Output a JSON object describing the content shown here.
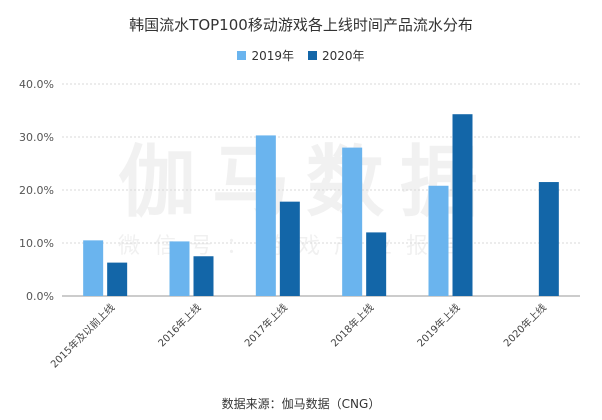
{
  "chart_data": {
    "type": "bar",
    "title": "韩国流水TOP100移动游戏各上线时间产品流水分布",
    "categories": [
      "2015年及以前上线",
      "2016年上线",
      "2017年上线",
      "2018年上线",
      "2019年上线",
      "2020年上线"
    ],
    "series": [
      {
        "name": "2019年",
        "color": "#6ab4ee",
        "values": [
          10.5,
          10.3,
          30.3,
          28.0,
          20.8,
          null
        ]
      },
      {
        "name": "2020年",
        "color": "#1366a8",
        "values": [
          6.3,
          7.5,
          17.8,
          12.0,
          34.3,
          21.5
        ]
      }
    ],
    "ylim": [
      0,
      40
    ],
    "yticks": [
      "0.0%",
      "10.0%",
      "20.0%",
      "30.0%",
      "40.0%"
    ],
    "xlabel": "",
    "ylabel": "",
    "grid": true,
    "legend_position": "top-center"
  },
  "watermark": {
    "main": "伽马数据",
    "sub": "微信号：游戏产业报告"
  },
  "source": "数据来源：伽马数据（CNG）"
}
